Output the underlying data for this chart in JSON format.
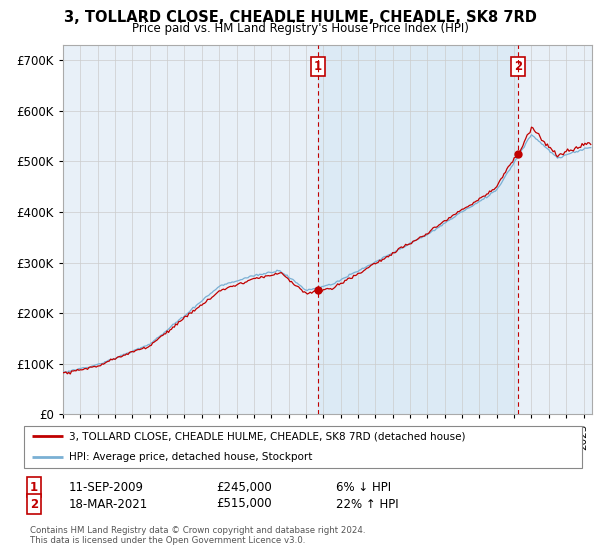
{
  "title": "3, TOLLARD CLOSE, CHEADLE HULME, CHEADLE, SK8 7RD",
  "subtitle": "Price paid vs. HM Land Registry's House Price Index (HPI)",
  "ylim": [
    0,
    730000
  ],
  "yticks": [
    0,
    100000,
    200000,
    300000,
    400000,
    500000,
    600000,
    700000
  ],
  "ytick_labels": [
    "£0",
    "£100K",
    "£200K",
    "£300K",
    "£400K",
    "£500K",
    "£600K",
    "£700K"
  ],
  "xmin": 1995,
  "xmax": 2025.5,
  "sale1_date": 2009.69,
  "sale1_price": 245000,
  "sale1_label": "1",
  "sale2_date": 2021.21,
  "sale2_price": 515000,
  "sale2_label": "2",
  "hpi_color": "#7ab0d4",
  "price_color": "#c00000",
  "highlight_color": "#dceaf5",
  "grid_color": "#cccccc",
  "bg_color": "#e8f0f8",
  "legend_entry1": "3, TOLLARD CLOSE, CHEADLE HULME, CHEADLE, SK8 7RD (detached house)",
  "legend_entry2": "HPI: Average price, detached house, Stockport",
  "footnote1": "Contains HM Land Registry data © Crown copyright and database right 2024.",
  "footnote2": "This data is licensed under the Open Government Licence v3.0.",
  "table_row1_num": "1",
  "table_row1_date": "11-SEP-2009",
  "table_row1_price": "£245,000",
  "table_row1_hpi": "6% ↓ HPI",
  "table_row2_num": "2",
  "table_row2_date": "18-MAR-2021",
  "table_row2_price": "£515,000",
  "table_row2_hpi": "22% ↑ HPI"
}
